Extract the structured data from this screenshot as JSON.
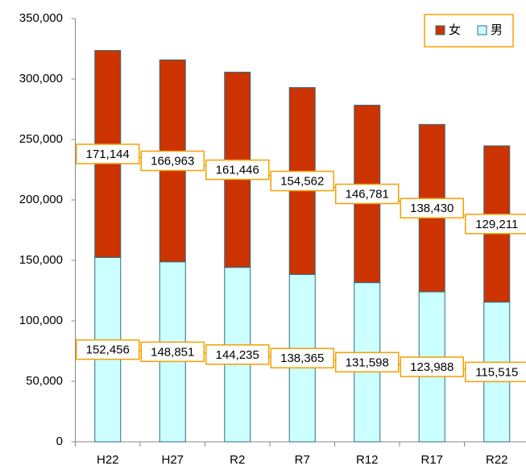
{
  "chart_data": {
    "type": "stacked-bar",
    "categories": [
      "H22",
      "H27",
      "R2",
      "R7",
      "R12",
      "R17",
      "R22"
    ],
    "series": [
      {
        "name": "男",
        "color": "#ccffff",
        "values": [
          152456,
          148851,
          144235,
          138365,
          131598,
          123988,
          115515
        ],
        "value_labels": [
          "152,456",
          "148,851",
          "144,235",
          "138,365",
          "131,598",
          "123,988",
          "115,515"
        ]
      },
      {
        "name": "女",
        "color": "#cc3300",
        "values": [
          171144,
          166963,
          161446,
          154562,
          146781,
          138430,
          129211
        ],
        "value_labels": [
          "171,144",
          "166,963",
          "161,446",
          "154,562",
          "146,781",
          "138,430",
          "129,211"
        ]
      }
    ],
    "ylim": [
      0,
      350000
    ],
    "yticks": [
      0,
      {
        "value": 50000,
        "label": "50,000"
      },
      {
        "value": 100000,
        "label": "100,000"
      },
      {
        "value": 150000,
        "label": "150,000"
      },
      {
        "value": 200000,
        "label": "200,000"
      },
      {
        "value": 250000,
        "label": "250,000"
      },
      {
        "value": 300000,
        "label": "300,000"
      },
      {
        "value": 350000,
        "label": "350,000"
      }
    ],
    "grid": false,
    "legend": "top-right"
  }
}
